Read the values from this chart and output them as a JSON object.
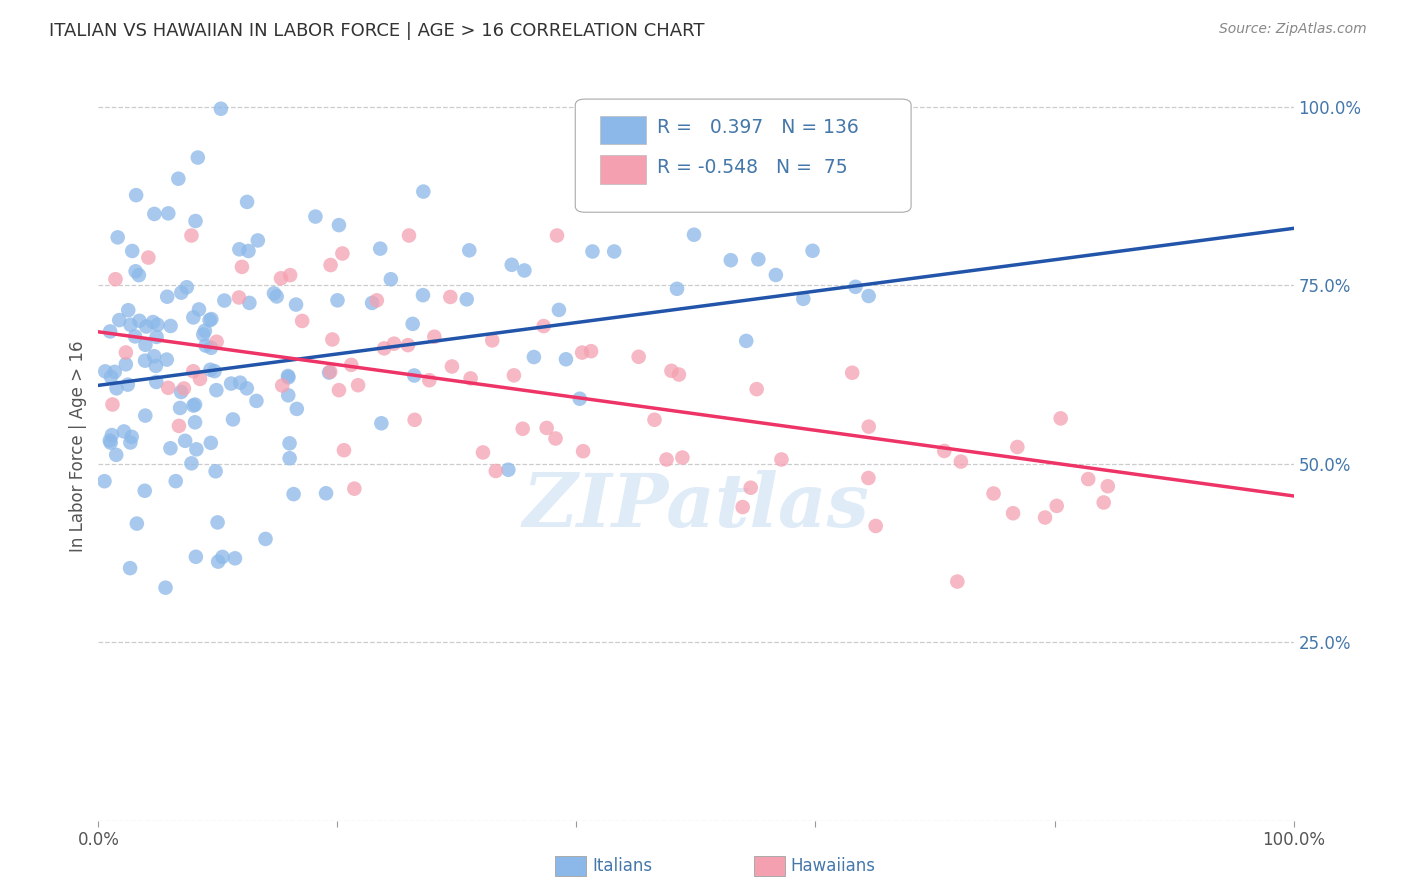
{
  "title": "ITALIAN VS HAWAIIAN IN LABOR FORCE | AGE > 16 CORRELATION CHART",
  "source": "Source: ZipAtlas.com",
  "ylabel": "In Labor Force | Age > 16",
  "xlim": [
    0.0,
    1.0
  ],
  "ylim": [
    0.0,
    1.05
  ],
  "ytick_values": [
    0.0,
    0.25,
    0.5,
    0.75,
    1.0
  ],
  "ytick_labels": [
    "",
    "25.0%",
    "50.0%",
    "75.0%",
    "100.0%"
  ],
  "xtick_values": [
    0.0,
    0.2,
    0.4,
    0.6,
    0.8,
    1.0
  ],
  "xtick_labels": [
    "0.0%",
    "",
    "",
    "",
    "",
    "100.0%"
  ],
  "italian_R": 0.397,
  "italian_N": 136,
  "hawaiian_R": -0.548,
  "hawaiian_N": 75,
  "italian_color": "#8BB8E8",
  "hawaiian_color": "#F4A0B0",
  "italian_line_color": "#2255AA",
  "hawaiian_line_color": "#EE3366",
  "background_color": "#FFFFFF",
  "grid_color": "#CCCCCC",
  "title_color": "#333333",
  "tick_color": "#4477AA",
  "watermark": "ZIPatlas",
  "seed": 42,
  "italian_trend_x0": 0.0,
  "italian_trend_y0": 0.61,
  "italian_trend_x1": 1.0,
  "italian_trend_y1": 0.83,
  "hawaiian_trend_x0": 0.0,
  "hawaiian_trend_y0": 0.685,
  "hawaiian_trend_x1": 1.0,
  "hawaiian_trend_y1": 0.455
}
